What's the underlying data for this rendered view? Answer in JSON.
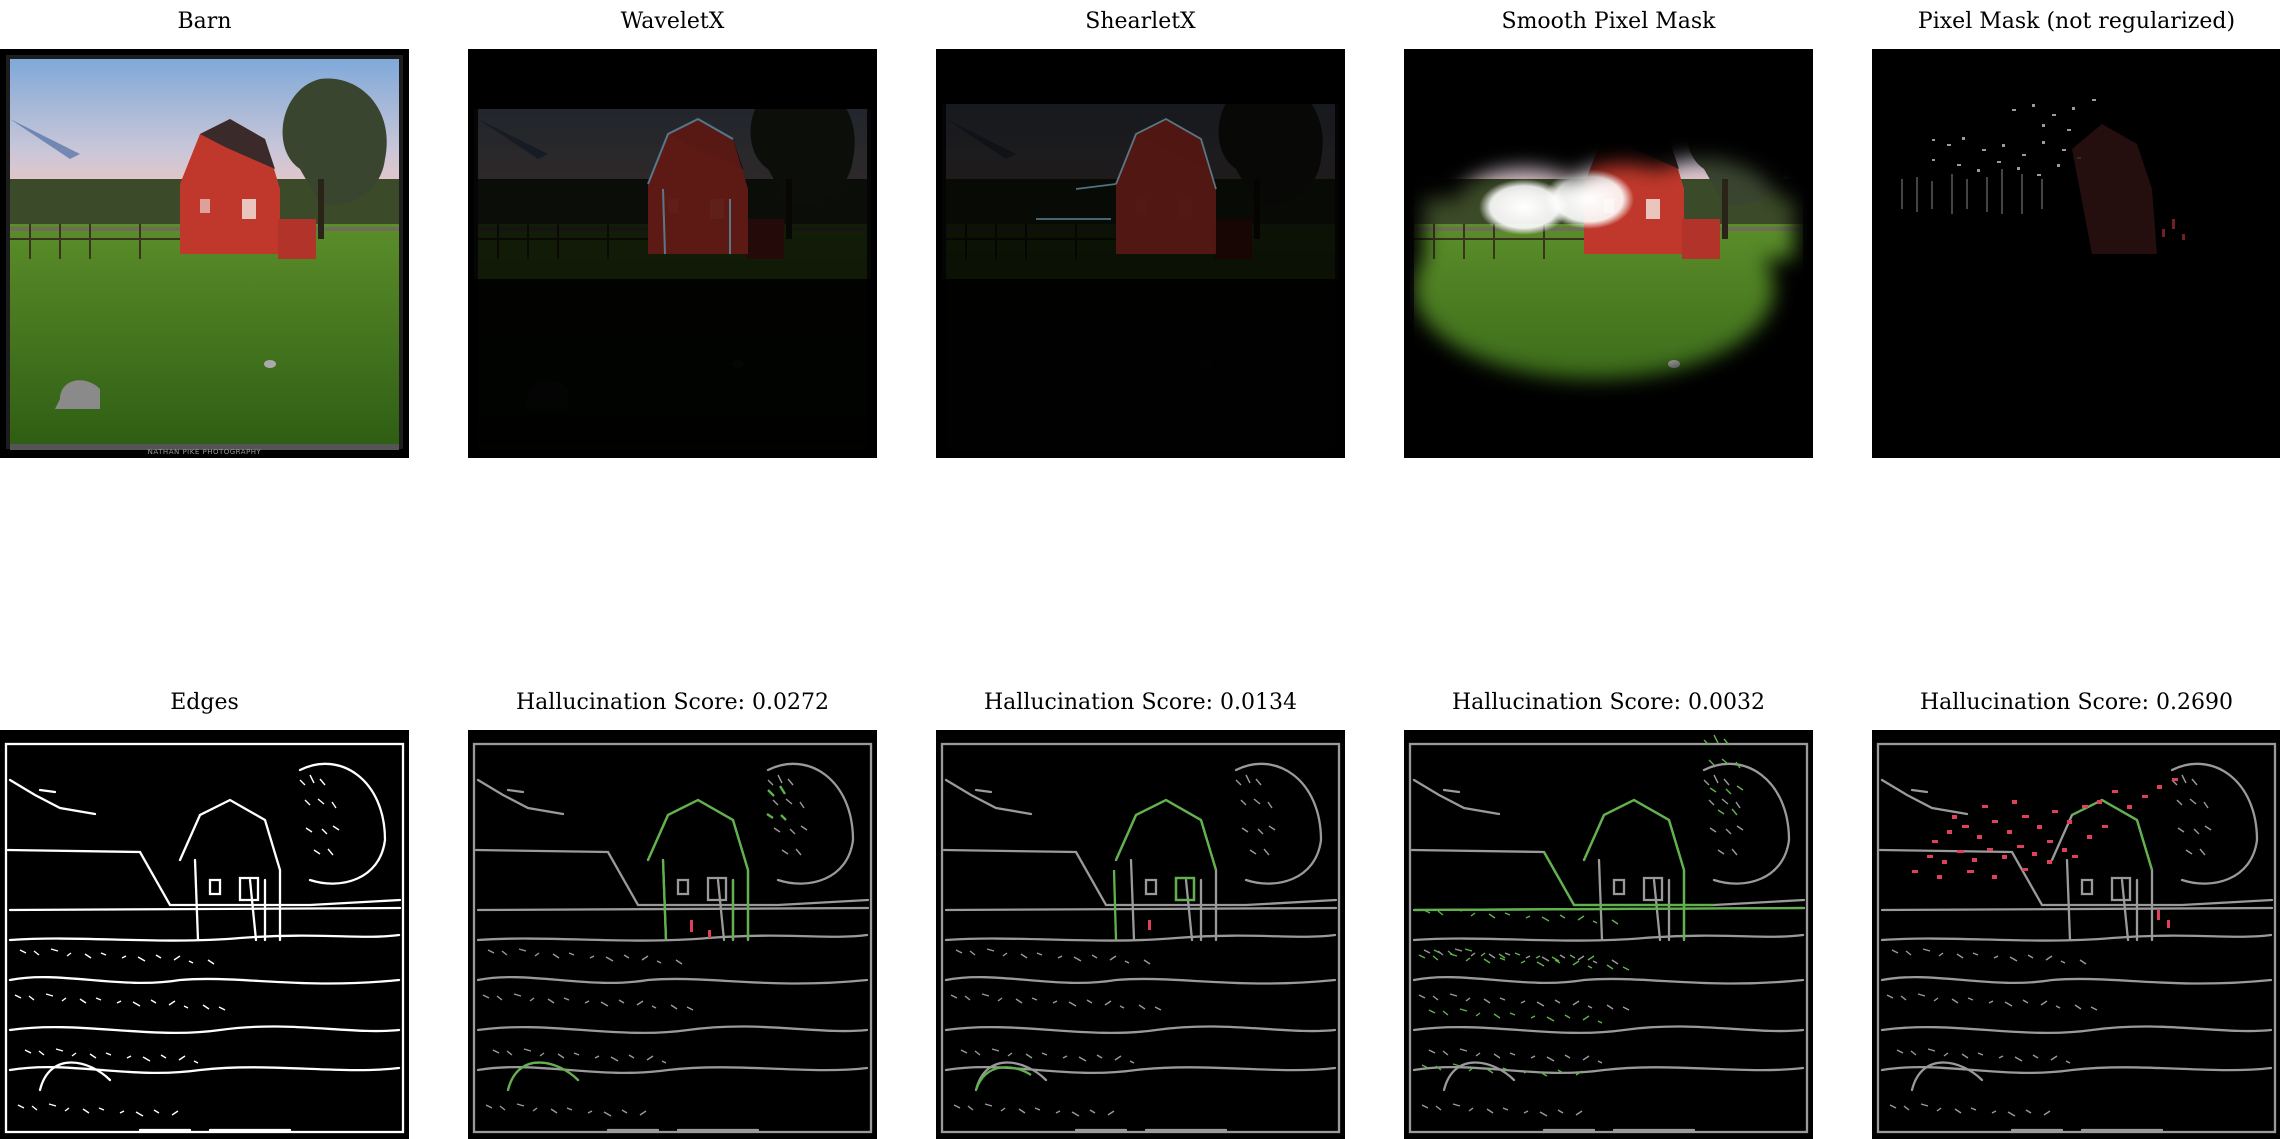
{
  "figure": {
    "row1": {
      "barn": {
        "title": "Barn",
        "footer": "NATHAN PIKE PHOTOGRAPHY"
      },
      "waveletx": {
        "title": "WaveletX"
      },
      "shearletx": {
        "title": "ShearletX"
      },
      "smooth_mask": {
        "title": "Smooth Pixel Mask"
      },
      "pixel_mask": {
        "title": "Pixel Mask (not regularized)"
      }
    },
    "row2": {
      "edges": {
        "title": "Edges"
      },
      "waveletx_score": {
        "title": "Hallucination Score: 0.0272"
      },
      "shearletx_score": {
        "title": "Hallucination Score: 0.0134"
      },
      "smooth_score": {
        "title": "Hallucination Score: 0.0032"
      },
      "pixel_score": {
        "title": "Hallucination Score: 0.2690"
      }
    },
    "colors": {
      "barn_red": "#c0382b",
      "grass": "#3f7d1c",
      "sky_top": "#7fa9d9",
      "sky_bottom": "#e8c5c7",
      "edge_white": "#ffffff",
      "edge_gray": "#9a9a9a",
      "edge_green": "#5fb34a",
      "edge_red": "#e0405a"
    }
  }
}
